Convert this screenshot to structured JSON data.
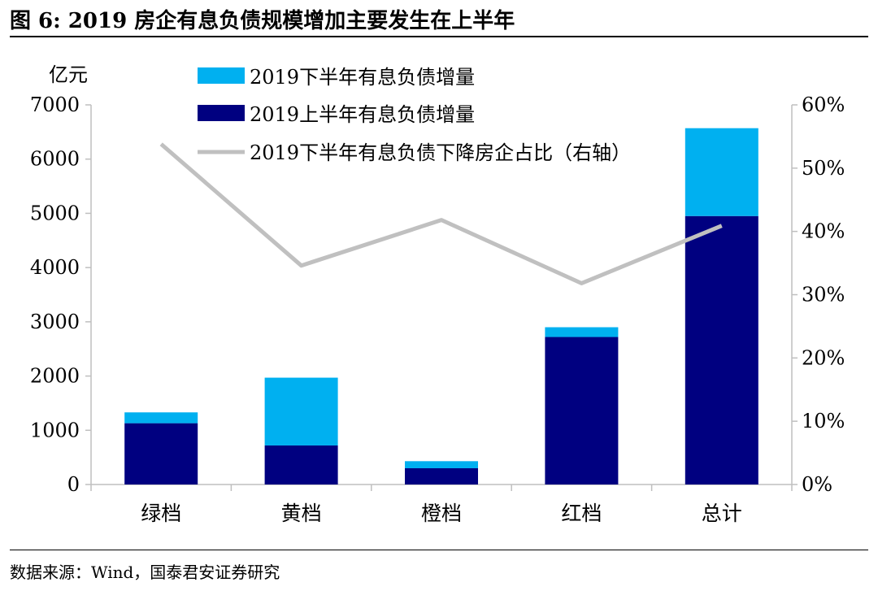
{
  "figure": {
    "title": "图 6:  2019 房企有息负债规模增加主要发生在上半年",
    "source": "数据来源：Wind，国泰君安证券研究"
  },
  "colors": {
    "h2": "#00B0F0",
    "h1": "#000080",
    "ratio_line": "#C0C0C0"
  },
  "chart_data": {
    "type": "bar",
    "stacked": true,
    "title": "",
    "categories": [
      "绿档",
      "黄档",
      "橙档",
      "红档",
      "总计"
    ],
    "y_left": {
      "unit_label": "亿元",
      "ylim": [
        0,
        7000
      ],
      "ticks": [
        0,
        1000,
        2000,
        3000,
        4000,
        5000,
        6000,
        7000
      ],
      "tick_labels": [
        "0",
        "1000",
        "2000",
        "3000",
        "4000",
        "5000",
        "6000",
        "7000"
      ]
    },
    "y_right": {
      "ylim": [
        0,
        0.6
      ],
      "ticks": [
        0,
        0.1,
        0.2,
        0.3,
        0.4,
        0.5,
        0.6
      ],
      "tick_labels": [
        "0%",
        "10%",
        "20%",
        "30%",
        "40%",
        "50%",
        "60%"
      ]
    },
    "series": [
      {
        "name": "2019上半年有息负债增量",
        "type": "bar",
        "axis": "left",
        "values": [
          1130,
          720,
          300,
          2720,
          4950
        ]
      },
      {
        "name": "2019下半年有息负债增量",
        "type": "bar",
        "axis": "left",
        "values": [
          200,
          1250,
          130,
          180,
          1620
        ]
      },
      {
        "name": "2019下半年有息负债下降房企占比（右轴）",
        "type": "line",
        "axis": "right",
        "values": [
          0.538,
          0.346,
          0.418,
          0.318,
          0.409
        ]
      }
    ],
    "legend": {
      "placement": "top",
      "entries": [
        "2019下半年有息负债增量",
        "2019上半年有息负债增量",
        "2019下半年有息负债下降房企占比（右轴）"
      ]
    },
    "grid": false
  }
}
